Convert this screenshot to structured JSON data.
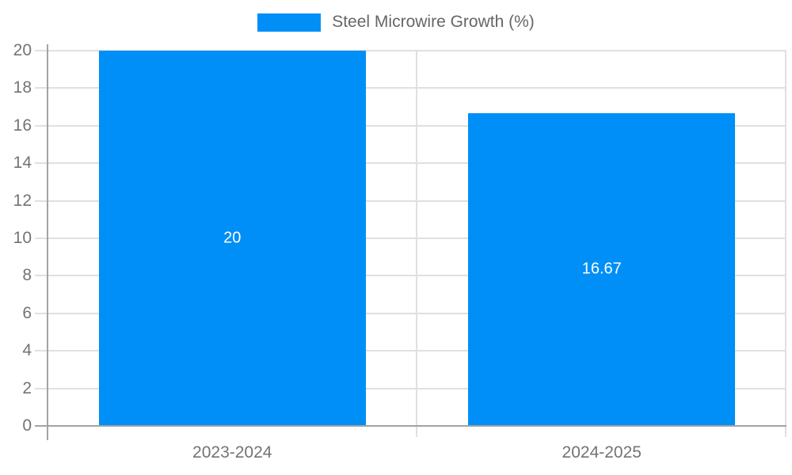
{
  "chart_data": {
    "type": "bar",
    "title": "",
    "xlabel": "",
    "ylabel": "",
    "legend_label": "Steel Microwire Growth (%)",
    "legend_position": "top",
    "categories": [
      "2023-2024",
      "2024-2025"
    ],
    "values": [
      20,
      16.67
    ],
    "value_labels": [
      "20",
      "16.67"
    ],
    "yticks": [
      0,
      2,
      4,
      6,
      8,
      10,
      12,
      14,
      16,
      18,
      20
    ],
    "ylim": [
      0,
      20
    ],
    "grid": true,
    "colors": {
      "bar": "#008ff6",
      "value_label": "#ffffff",
      "grid": "#e0e0e0",
      "axis": "#a3a3a3",
      "tick_label": "#737373",
      "legend_text": "#666666",
      "background": "#ffffff"
    }
  }
}
